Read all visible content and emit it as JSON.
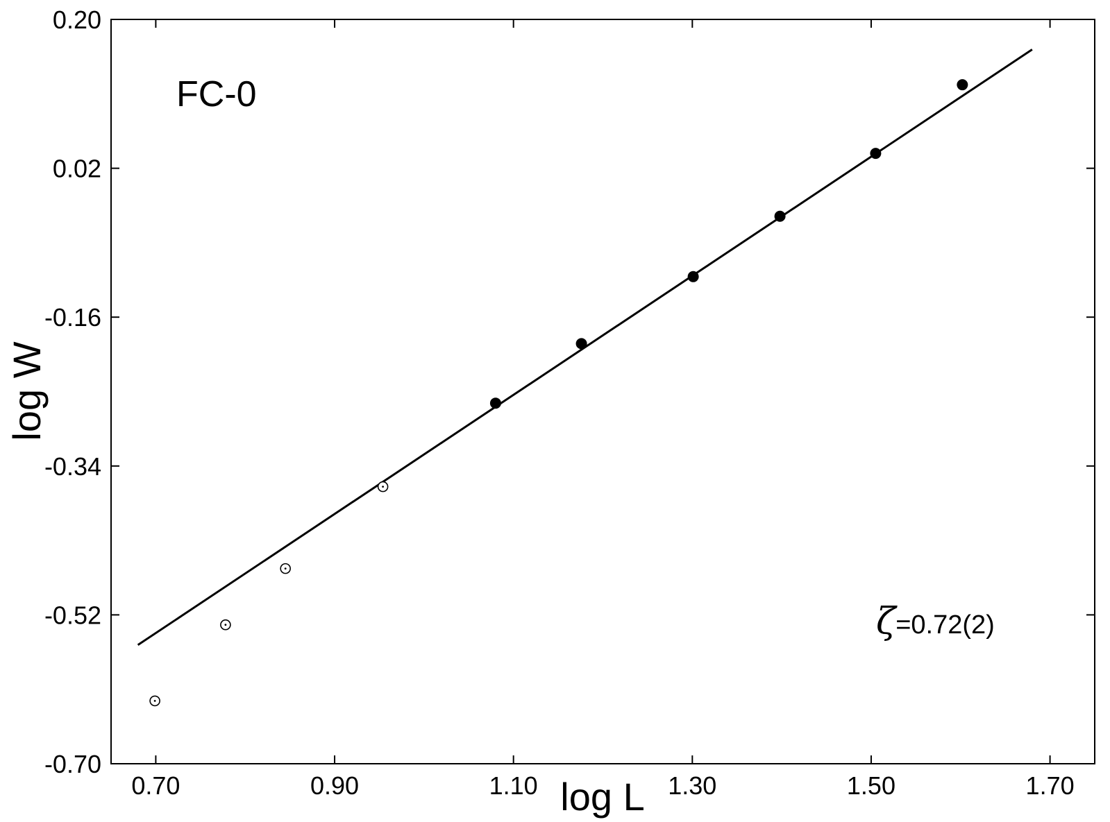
{
  "chart_data": {
    "type": "scatter",
    "title": "",
    "xlabel": "log L",
    "ylabel": "log W",
    "xlim": [
      0.65,
      1.75
    ],
    "ylim": [
      -0.7,
      0.2
    ],
    "x_ticks": [
      0.7,
      0.9,
      1.1,
      1.3,
      1.5,
      1.7
    ],
    "x_tick_labels": [
      "0.70",
      "0.90",
      "1.10",
      "1.30",
      "1.50",
      "1.70"
    ],
    "y_ticks": [
      0.2,
      0.02,
      -0.16,
      -0.34,
      -0.52,
      -0.7
    ],
    "y_tick_labels": [
      "0.20",
      "0.02",
      "-0.16",
      "-0.34",
      "-0.52",
      "-0.70"
    ],
    "grid": false,
    "legend": "none",
    "annotations": {
      "panel_label": "FC-0",
      "zeta_symbol": "ζ",
      "zeta_value": "=0.72(2)"
    },
    "series": [
      {
        "marker": "filled-circle",
        "x": [
          1.08,
          1.176,
          1.301,
          1.398,
          1.505,
          1.602
        ],
        "y": [
          -0.264,
          -0.192,
          -0.111,
          -0.038,
          0.038,
          0.121
        ]
      },
      {
        "marker": "open-circle-dot",
        "x": [
          0.699,
          0.778,
          0.845,
          0.954
        ],
        "y": [
          -0.624,
          -0.532,
          -0.464,
          -0.365
        ]
      }
    ],
    "fit_line": {
      "slope": 0.72,
      "intercept": -1.046,
      "x_range": [
        0.68,
        1.68
      ]
    },
    "colors": {
      "marks": "#000000",
      "background": "#ffffff"
    }
  }
}
